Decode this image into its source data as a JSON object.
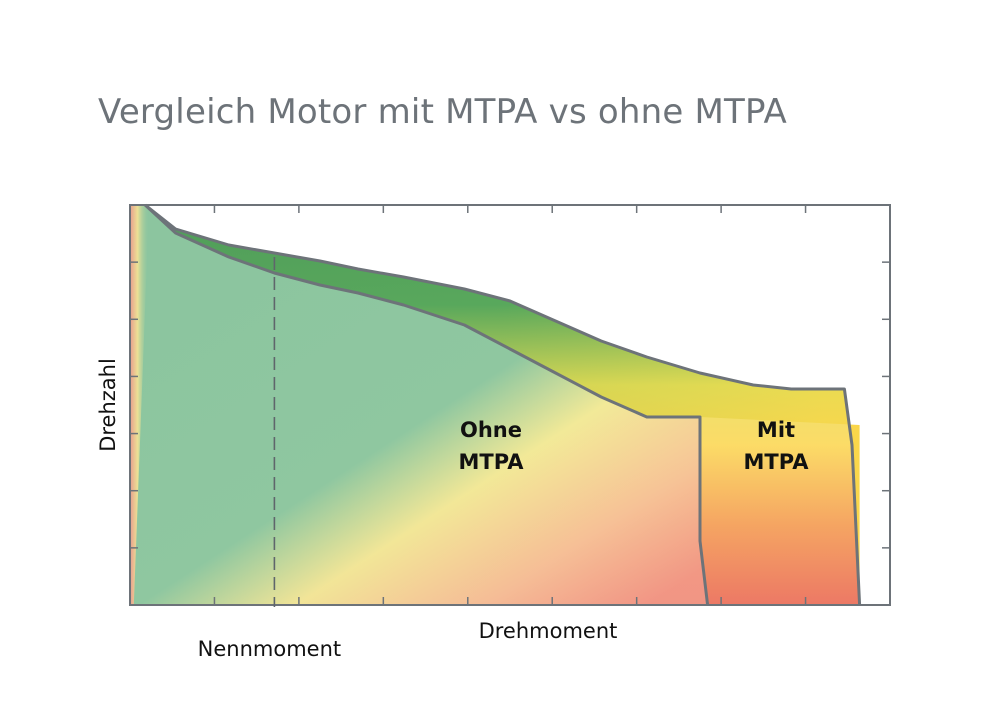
{
  "title": "Vergleich Motor mit MTPA vs ohne MTPA",
  "chart_data": {
    "type": "area",
    "title": "Vergleich Motor mit MTPA vs ohne MTPA",
    "xlabel": "Drehmoment",
    "ylabel": "Drehzahl",
    "xlim": [
      0,
      1
    ],
    "ylim": [
      0,
      1
    ],
    "annotations": [
      {
        "id": "nennmoment",
        "text": "Nennmoment",
        "x": 0.19
      }
    ],
    "series": [
      {
        "name": "Ohne MTPA",
        "label_lines": [
          "Ohne",
          "MTPA"
        ],
        "x": [
          0.02,
          0.06,
          0.13,
          0.19,
          0.25,
          0.3,
          0.36,
          0.44,
          0.5,
          0.56,
          0.62,
          0.68,
          0.75,
          0.75,
          0.76
        ],
        "y": [
          1.0,
          0.93,
          0.87,
          0.83,
          0.8,
          0.78,
          0.75,
          0.7,
          0.64,
          0.58,
          0.52,
          0.47,
          0.47,
          0.16,
          0.0
        ]
      },
      {
        "name": "Mit MTPA",
        "label_lines": [
          "Mit",
          "MTPA"
        ],
        "x": [
          0.02,
          0.06,
          0.13,
          0.19,
          0.25,
          0.3,
          0.36,
          0.44,
          0.5,
          0.56,
          0.62,
          0.68,
          0.75,
          0.82,
          0.87,
          0.94,
          0.95,
          0.955,
          0.96
        ],
        "y": [
          1.0,
          0.94,
          0.9,
          0.88,
          0.86,
          0.84,
          0.82,
          0.79,
          0.76,
          0.71,
          0.66,
          0.62,
          0.58,
          0.55,
          0.54,
          0.54,
          0.4,
          0.2,
          0.0
        ]
      }
    ]
  }
}
